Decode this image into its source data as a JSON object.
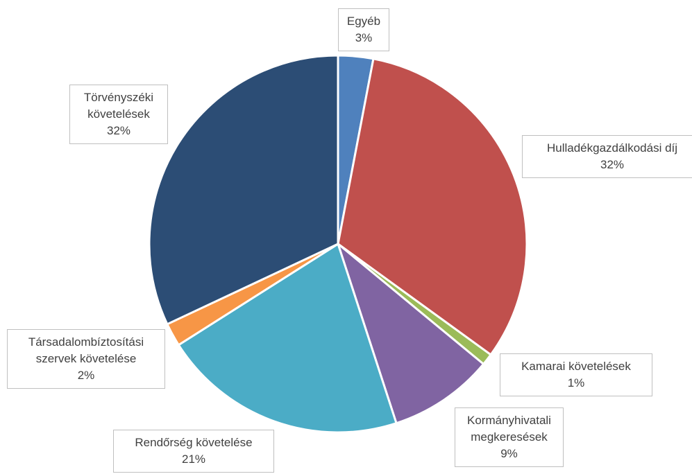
{
  "chart_data": {
    "type": "pie",
    "categories": [
      "Egyéb",
      "Hulladékgazdálkodási díj",
      "Kamarai követelések",
      "Kormányhivatali megkeresések",
      "Rendőrség követelése",
      "Társadalombíztosítási szervek követelése",
      "Törvényszéki követelések"
    ],
    "values": [
      3,
      32,
      1,
      9,
      21,
      2,
      32
    ],
    "value_labels": [
      "3%",
      "32%",
      "1%",
      "9%",
      "21%",
      "2%",
      "32%"
    ],
    "colors": [
      "#4f81bd",
      "#c0504d",
      "#9bbb59",
      "#8064a2",
      "#4bacc6",
      "#f79646",
      "#2c4d75"
    ]
  }
}
